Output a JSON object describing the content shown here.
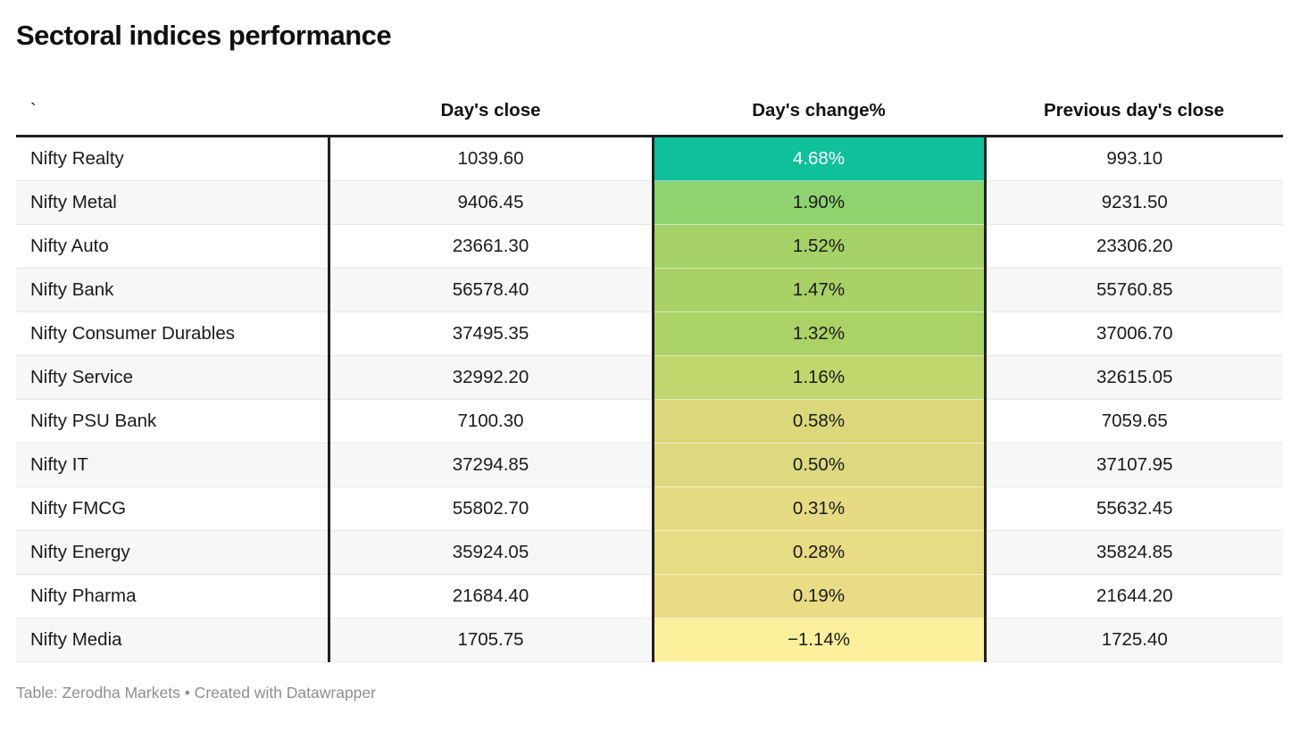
{
  "title": "Sectoral indices performance",
  "table": {
    "columns": [
      {
        "label": "`"
      },
      {
        "label": "Day's close"
      },
      {
        "label": "Day's change%"
      },
      {
        "label": "Previous day's close"
      }
    ],
    "rows": [
      {
        "name": "Nifty Realty",
        "close": "1039.60",
        "change": "4.68%",
        "prev": "993.10",
        "change_bg": "#0fc09a",
        "change_color": "#ffffff"
      },
      {
        "name": "Nifty Metal",
        "close": "9406.45",
        "change": "1.90%",
        "prev": "9231.50",
        "change_bg": "#8fd36f",
        "change_color": "#1a1a1a"
      },
      {
        "name": "Nifty Auto",
        "close": "23661.30",
        "change": "1.52%",
        "prev": "23306.20",
        "change_bg": "#a6d166",
        "change_color": "#1a1a1a"
      },
      {
        "name": "Nifty Bank",
        "close": "56578.40",
        "change": "1.47%",
        "prev": "55760.85",
        "change_bg": "#a9d165",
        "change_color": "#1a1a1a"
      },
      {
        "name": "Nifty Consumer Durables",
        "close": "37495.35",
        "change": "1.32%",
        "prev": "37006.70",
        "change_bg": "#abd264",
        "change_color": "#1a1a1a"
      },
      {
        "name": "Nifty Service",
        "close": "32992.20",
        "change": "1.16%",
        "prev": "32615.05",
        "change_bg": "#bfd76c",
        "change_color": "#1a1a1a"
      },
      {
        "name": "Nifty PSU Bank",
        "close": "7100.30",
        "change": "0.58%",
        "prev": "7059.65",
        "change_bg": "#dbd87c",
        "change_color": "#1a1a1a"
      },
      {
        "name": "Nifty IT",
        "close": "37294.85",
        "change": "0.50%",
        "prev": "37107.95",
        "change_bg": "#ddd97e",
        "change_color": "#1a1a1a"
      },
      {
        "name": "Nifty FMCG",
        "close": "55802.70",
        "change": "0.31%",
        "prev": "55632.45",
        "change_bg": "#e6da82",
        "change_color": "#1a1a1a"
      },
      {
        "name": "Nifty Energy",
        "close": "35924.05",
        "change": "0.28%",
        "prev": "35824.85",
        "change_bg": "#e7db83",
        "change_color": "#1a1a1a"
      },
      {
        "name": "Nifty Pharma",
        "close": "21684.40",
        "change": "0.19%",
        "prev": "21644.20",
        "change_bg": "#e9dc85",
        "change_color": "#1a1a1a"
      },
      {
        "name": "Nifty Media",
        "close": "1705.75",
        "change": "−1.14%",
        "prev": "1725.40",
        "change_bg": "#fdf09c",
        "change_color": "#1a1a1a"
      }
    ]
  },
  "footer": {
    "credit": "Table: Zerodha Markets • Created with Datawrapper"
  },
  "colors": {
    "header_border": "#1f1f1f",
    "row_alt_bg": "#f7f7f7",
    "row_separator": "#e8e8e8",
    "footer_text": "#8e8e8e",
    "scale_top": "#0fc09a",
    "scale_bottom": "#fdf09c"
  },
  "chart_data": {
    "type": "table",
    "title": "Sectoral indices performance",
    "columns": [
      "`",
      "Day's close",
      "Day's change%",
      "Previous day's close"
    ],
    "categories": [
      "Nifty Realty",
      "Nifty Metal",
      "Nifty Auto",
      "Nifty Bank",
      "Nifty Consumer Durables",
      "Nifty Service",
      "Nifty PSU Bank",
      "Nifty IT",
      "Nifty FMCG",
      "Nifty Energy",
      "Nifty Pharma",
      "Nifty Media"
    ],
    "series": [
      {
        "name": "Day's close",
        "values": [
          1039.6,
          9406.45,
          23661.3,
          56578.4,
          37495.35,
          32992.2,
          7100.3,
          37294.85,
          55802.7,
          35924.05,
          21684.4,
          1705.75
        ]
      },
      {
        "name": "Day's change%",
        "values": [
          4.68,
          1.9,
          1.52,
          1.47,
          1.32,
          1.16,
          0.58,
          0.5,
          0.31,
          0.28,
          0.19,
          -1.14
        ]
      },
      {
        "name": "Previous day's close",
        "values": [
          993.1,
          9231.5,
          23306.2,
          55760.85,
          37006.7,
          32615.05,
          7059.65,
          37107.95,
          55632.45,
          35824.85,
          21644.2,
          1725.4
        ]
      }
    ],
    "layout_hints": {
      "heatmap_column": "Day's change%",
      "heatmap_scale": "green-to-yellow descending",
      "footer": "Table: Zerodha Markets • Created with Datawrapper"
    }
  }
}
